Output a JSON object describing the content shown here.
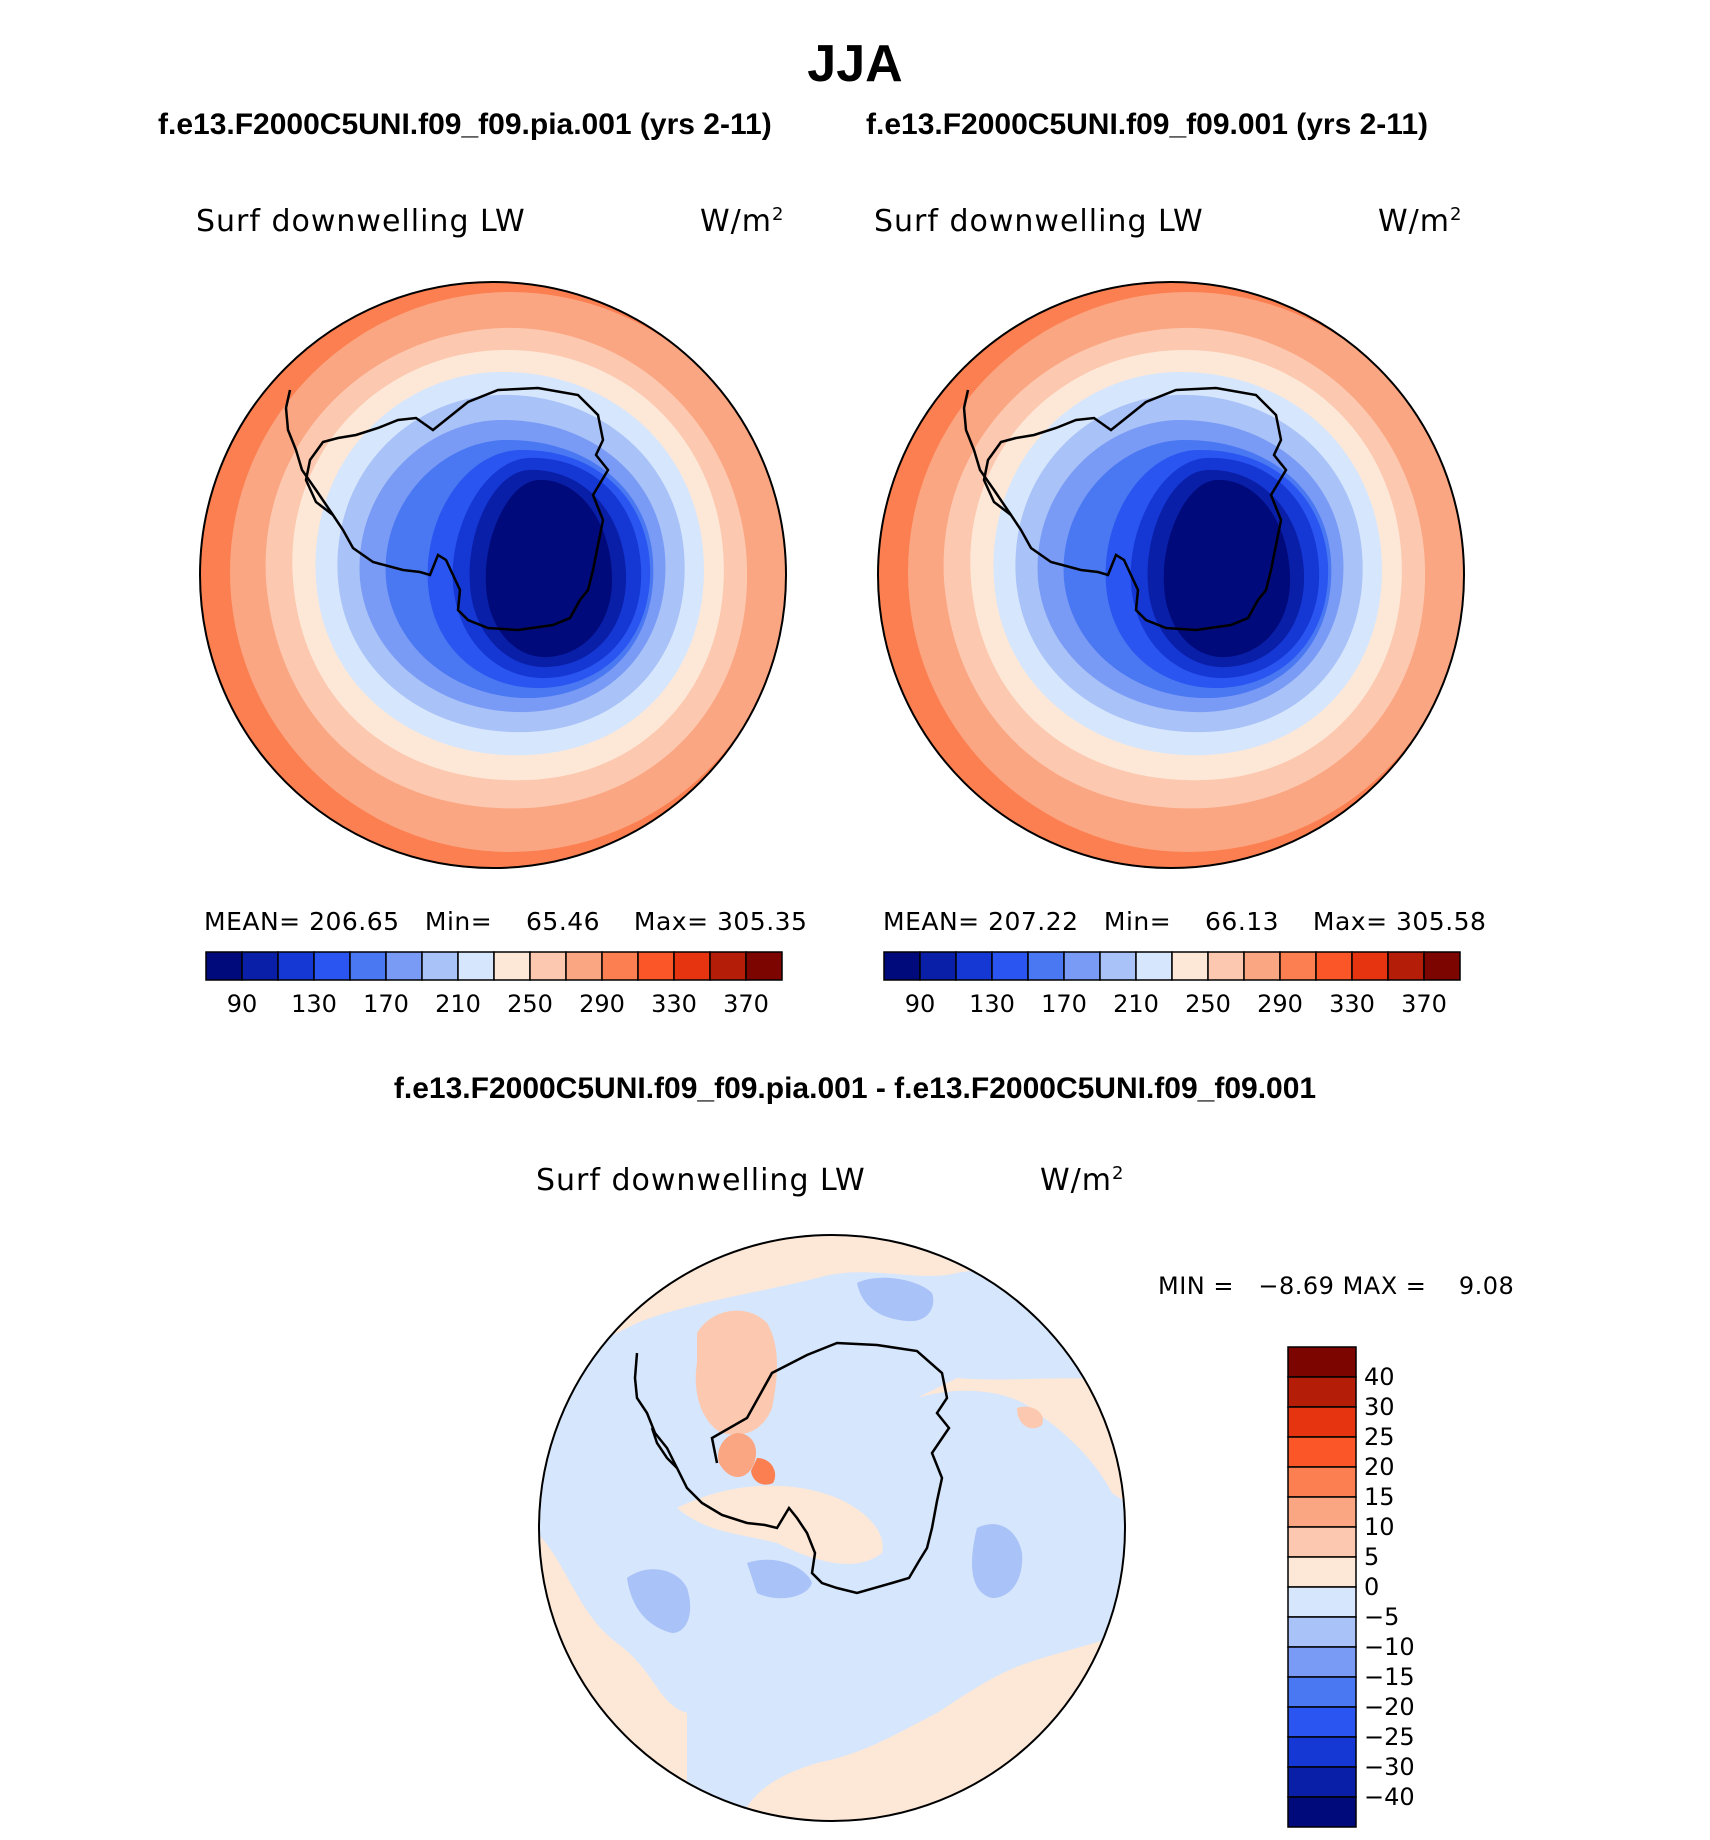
{
  "season": "JJA",
  "top_panels": [
    {
      "case": "f.e13.F2000C5UNI.f09_f09.pia.001 (yrs 2-11)",
      "variable": "Surf downwelling LW",
      "units_base": "W/m",
      "units_exp": "2",
      "mean_label": "MEAN=",
      "mean": "206.65",
      "min_label": "Min=",
      "min": "65.46",
      "max_label": "Max=",
      "max": "305.35"
    },
    {
      "case": "f.e13.F2000C5UNI.f09_f09.001 (yrs 2-11)",
      "variable": "Surf downwelling LW",
      "units_base": "W/m",
      "units_exp": "2",
      "mean_label": "MEAN=",
      "mean": "207.22",
      "min_label": "Min=",
      "min": "66.13",
      "max_label": "Max=",
      "max": "305.58"
    }
  ],
  "diff_panel": {
    "title": "f.e13.F2000C5UNI.f09_f09.pia.001 - f.e13.F2000C5UNI.f09_f09.001",
    "variable": "Surf downwelling LW",
    "units_base": "W/m",
    "units_exp": "2",
    "min_label": "MIN =",
    "min": "−8.69",
    "max_label": "MAX =",
    "max": "9.08"
  },
  "colorbar_abs": {
    "colors": [
      "#000a7a",
      "#0a1fa8",
      "#1537d4",
      "#2a55f0",
      "#4a78f2",
      "#7a9bf5",
      "#a9c2f8",
      "#d6e6fc",
      "#fde8d8",
      "#fcc9b0",
      "#fba682",
      "#fb7f50",
      "#fb5628",
      "#e63410",
      "#b41e08",
      "#7d0500"
    ],
    "tick_labels": [
      "90",
      "130",
      "170",
      "210",
      "250",
      "290",
      "330",
      "370"
    ]
  },
  "colorbar_diff": {
    "colors": [
      "#7d0500",
      "#b41e08",
      "#e63410",
      "#fb5628",
      "#fb7f50",
      "#fba682",
      "#fcc9b0",
      "#fde8d8",
      "#d6e6fc",
      "#a9c2f8",
      "#7a9bf5",
      "#4a78f2",
      "#2a55f0",
      "#1537d4",
      "#0a1fa8",
      "#000a7a"
    ],
    "tick_labels": [
      "40",
      "30",
      "25",
      "20",
      "15",
      "10",
      "5",
      "0",
      "−5",
      "−10",
      "−15",
      "−20",
      "−25",
      "−30",
      "−40"
    ]
  }
}
